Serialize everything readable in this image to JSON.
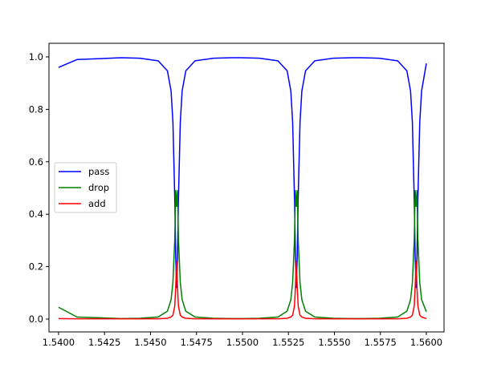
{
  "chart_data": {
    "type": "line",
    "title": "",
    "xlabel": "",
    "ylabel": "",
    "xlim": [
      1.53948,
      1.56096
    ],
    "ylim": [
      -0.049,
      1.052
    ],
    "grid": false,
    "legend_position": "center-left",
    "x_ticks": [
      1.54,
      1.5425,
      1.545,
      1.5475,
      1.55,
      1.5525,
      1.555,
      1.5575,
      1.56
    ],
    "x_tick_labels": [
      "1.5400",
      "1.5425",
      "1.5450",
      "1.5475",
      "1.5500",
      "1.5525",
      "1.5550",
      "1.5575",
      "1.5600"
    ],
    "y_ticks": [
      0,
      0.2,
      0.4,
      0.6,
      0.8,
      1.0
    ],
    "y_tick_labels": [
      "0.0",
      "0.2",
      "0.4",
      "0.6",
      "0.8",
      "1.0"
    ],
    "x": [
      1.54,
      1.541,
      1.54342,
      1.54442,
      1.54542,
      1.54592,
      1.54612,
      1.54622,
      1.54632,
      1.54637,
      1.54642,
      1.54647,
      1.54652,
      1.54662,
      1.54672,
      1.54692,
      1.54742,
      1.54842,
      1.54942,
      1.54993,
      1.55093,
      1.55193,
      1.55243,
      1.55263,
      1.55273,
      1.55283,
      1.55288,
      1.55293,
      1.55298,
      1.55303,
      1.55313,
      1.55323,
      1.55343,
      1.55393,
      1.55493,
      1.55593,
      1.55644,
      1.55744,
      1.55844,
      1.55894,
      1.55914,
      1.55924,
      1.55934,
      1.55939,
      1.55944,
      1.55949,
      1.55954,
      1.55964,
      1.55974,
      1.56
    ],
    "series": [
      {
        "name": "pass",
        "color": "#0000ff",
        "values": [
          0.96,
          0.99,
          0.997,
          0.995,
          0.985,
          0.947,
          0.87,
          0.75,
          0.46,
          0.24,
          0.12,
          0.24,
          0.46,
          0.75,
          0.87,
          0.947,
          0.985,
          0.995,
          0.997,
          0.997,
          0.995,
          0.985,
          0.947,
          0.87,
          0.75,
          0.46,
          0.24,
          0.12,
          0.24,
          0.46,
          0.75,
          0.87,
          0.947,
          0.985,
          0.995,
          0.997,
          0.997,
          0.995,
          0.985,
          0.947,
          0.87,
          0.75,
          0.46,
          0.24,
          0.12,
          0.24,
          0.46,
          0.75,
          0.87,
          0.975
        ]
      },
      {
        "name": "drop",
        "color": "#008000",
        "values": [
          0.045,
          0.008,
          0.002,
          0.003,
          0.008,
          0.03,
          0.074,
          0.14,
          0.305,
          0.49,
          0.43,
          0.49,
          0.305,
          0.14,
          0.074,
          0.03,
          0.008,
          0.003,
          0.002,
          0.002,
          0.003,
          0.008,
          0.03,
          0.074,
          0.14,
          0.305,
          0.49,
          0.43,
          0.49,
          0.305,
          0.14,
          0.074,
          0.03,
          0.008,
          0.003,
          0.002,
          0.002,
          0.003,
          0.008,
          0.03,
          0.074,
          0.14,
          0.305,
          0.49,
          0.43,
          0.49,
          0.305,
          0.14,
          0.074,
          0.028
        ]
      },
      {
        "name": "add",
        "color": "#ff0000",
        "values": [
          0.002,
          0.001,
          0.001,
          0.001,
          0.001,
          0.003,
          0.008,
          0.015,
          0.05,
          0.12,
          0.22,
          0.12,
          0.05,
          0.015,
          0.008,
          0.003,
          0.001,
          0.001,
          0.001,
          0.001,
          0.001,
          0.001,
          0.003,
          0.008,
          0.015,
          0.05,
          0.12,
          0.22,
          0.12,
          0.05,
          0.015,
          0.008,
          0.003,
          0.001,
          0.001,
          0.001,
          0.001,
          0.001,
          0.001,
          0.003,
          0.008,
          0.015,
          0.05,
          0.12,
          0.22,
          0.12,
          0.05,
          0.015,
          0.008,
          0.002
        ]
      }
    ]
  }
}
